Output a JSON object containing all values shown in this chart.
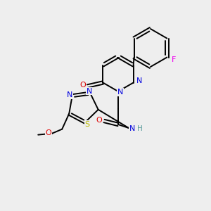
{
  "bg_color": "#eeeeee",
  "bond_color": "#000000",
  "atom_colors": {
    "N": "#0000dd",
    "O": "#dd0000",
    "S": "#bbbb00",
    "F": "#ee00ee",
    "C": "#000000",
    "H": "#559999"
  },
  "figsize": [
    3.0,
    3.0
  ],
  "dpi": 100
}
